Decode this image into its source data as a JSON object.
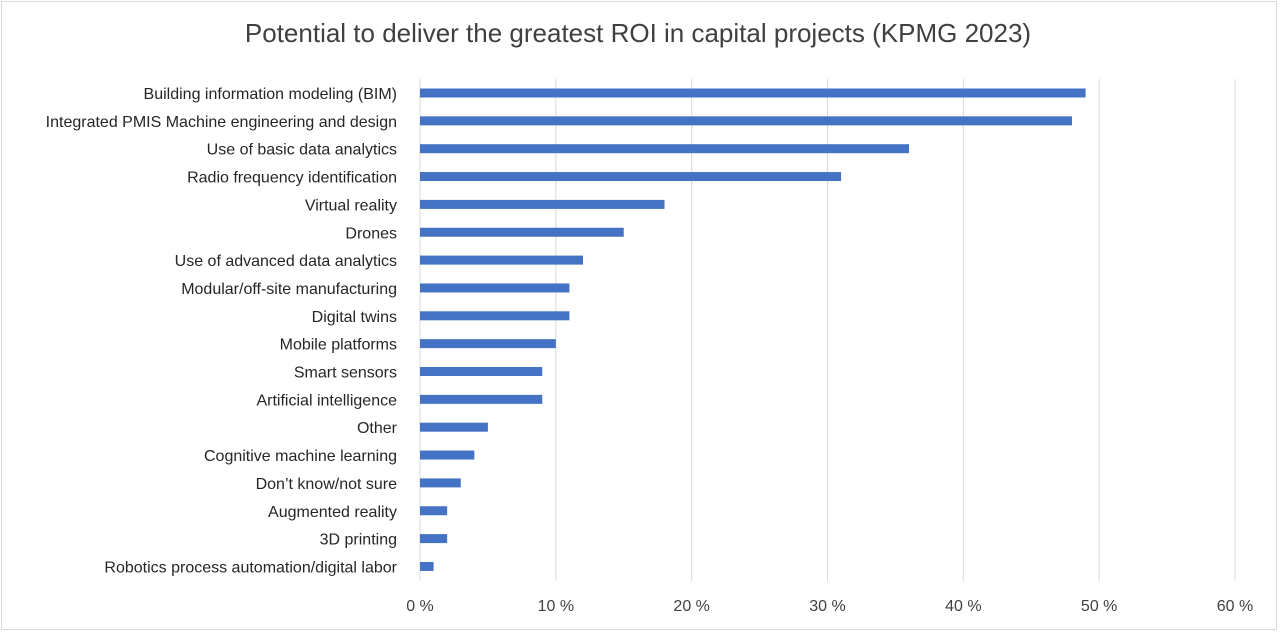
{
  "chart_data": {
    "type": "bar",
    "orientation": "horizontal",
    "title": "Potential to deliver the greatest ROI in capital projects (KPMG 2023)",
    "categories": [
      "Building information modeling (BIM)",
      "Integrated PMIS Machine engineering and design",
      "Use of basic data analytics",
      "Radio frequency identification",
      "Virtual reality",
      "Drones",
      "Use of advanced data analytics",
      "Modular/off-site manufacturing",
      "Digital twins",
      "Mobile platforms",
      "Smart sensors",
      "Artificial intelligence",
      "Other",
      "Cognitive machine learning",
      "Don’t know/not sure",
      "Augmented reality",
      "3D printing",
      "Robotics process automation/digital labor"
    ],
    "values": [
      49,
      48,
      36,
      31,
      18,
      15,
      12,
      11,
      11,
      10,
      9,
      9,
      5,
      4,
      3,
      2,
      2,
      1
    ],
    "xlim": [
      0,
      60
    ],
    "xticks": [
      "0 %",
      "10 %",
      "20 %",
      "30 %",
      "40 %",
      "50 %",
      "60 %"
    ],
    "grid": true,
    "bar_color": "#4472c4",
    "grid_color": "#d9d9d9"
  }
}
